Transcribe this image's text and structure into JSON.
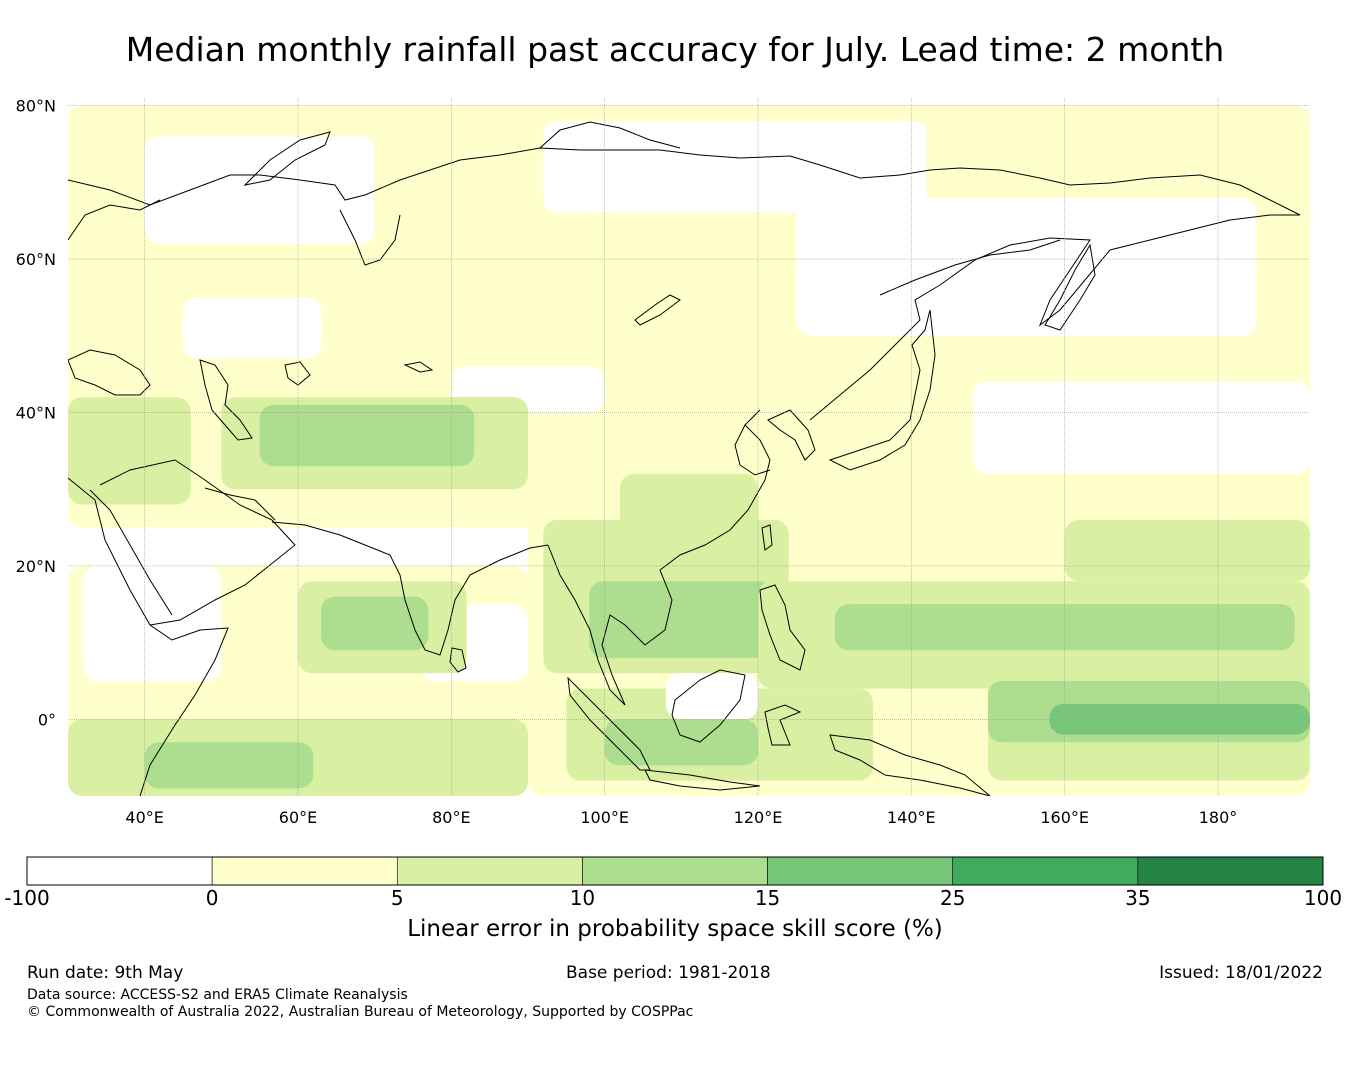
{
  "title": "Median monthly rainfall past accuracy for July. Lead time: 2 month",
  "map": {
    "lon_range": [
      30,
      192
    ],
    "lat_range": [
      -10,
      81
    ],
    "lat_ticks": [
      {
        "value": 80,
        "label": "80°N"
      },
      {
        "value": 60,
        "label": "60°N"
      },
      {
        "value": 40,
        "label": "40°N"
      },
      {
        "value": 20,
        "label": "20°N"
      },
      {
        "value": 0,
        "label": "0°"
      }
    ],
    "lon_ticks": [
      {
        "value": 40,
        "label": "40°E"
      },
      {
        "value": 60,
        "label": "60°E"
      },
      {
        "value": 80,
        "label": "80°E"
      },
      {
        "value": 100,
        "label": "100°E"
      },
      {
        "value": 120,
        "label": "120°E"
      },
      {
        "value": 140,
        "label": "140°E"
      },
      {
        "value": 160,
        "label": "160°E"
      },
      {
        "value": 180,
        "label": "180°"
      }
    ],
    "field_regions": [
      {
        "level": 1,
        "lon": 30,
        "lat": 25,
        "w": 162,
        "h": 55
      },
      {
        "level": 0,
        "lon": 40,
        "lat": 62,
        "w": 30,
        "h": 14
      },
      {
        "level": 0,
        "lon": 92,
        "lat": 66,
        "w": 50,
        "h": 12
      },
      {
        "level": 0,
        "lon": 125,
        "lat": 50,
        "w": 60,
        "h": 18
      },
      {
        "level": 0,
        "lon": 148,
        "lat": 32,
        "w": 44,
        "h": 12
      },
      {
        "level": 0,
        "lon": 80,
        "lat": 40,
        "w": 20,
        "h": 6
      },
      {
        "level": 0,
        "lon": 45,
        "lat": 47,
        "w": 18,
        "h": 8
      },
      {
        "level": 2,
        "lon": 30,
        "lat": 28,
        "w": 16,
        "h": 14
      },
      {
        "level": 2,
        "lon": 50,
        "lat": 30,
        "w": 40,
        "h": 12
      },
      {
        "level": 3,
        "lon": 55,
        "lat": 33,
        "w": 28,
        "h": 8
      },
      {
        "level": 1,
        "lon": 30,
        "lat": -10,
        "w": 60,
        "h": 30
      },
      {
        "level": 0,
        "lon": 32,
        "lat": 5,
        "w": 18,
        "h": 15
      },
      {
        "level": 0,
        "lon": 76,
        "lat": 5,
        "w": 14,
        "h": 10
      },
      {
        "level": 2,
        "lon": 60,
        "lat": 6,
        "w": 22,
        "h": 12
      },
      {
        "level": 3,
        "lon": 63,
        "lat": 9,
        "w": 14,
        "h": 7
      },
      {
        "level": 2,
        "lon": 30,
        "lat": -10,
        "w": 60,
        "h": 10
      },
      {
        "level": 3,
        "lon": 40,
        "lat": -9,
        "w": 22,
        "h": 6
      },
      {
        "level": 1,
        "lon": 90,
        "lat": -10,
        "w": 102,
        "h": 40
      },
      {
        "level": 2,
        "lon": 92,
        "lat": 6,
        "w": 32,
        "h": 20
      },
      {
        "level": 3,
        "lon": 98,
        "lat": 8,
        "w": 24,
        "h": 10
      },
      {
        "level": 2,
        "lon": 102,
        "lat": 24,
        "w": 18,
        "h": 8
      },
      {
        "level": 2,
        "lon": 95,
        "lat": -8,
        "w": 40,
        "h": 12
      },
      {
        "level": 3,
        "lon": 100,
        "lat": -6,
        "w": 20,
        "h": 6
      },
      {
        "level": 2,
        "lon": 120,
        "lat": 4,
        "w": 72,
        "h": 14
      },
      {
        "level": 3,
        "lon": 130,
        "lat": 9,
        "w": 60,
        "h": 6
      },
      {
        "level": 2,
        "lon": 150,
        "lat": -8,
        "w": 42,
        "h": 16
      },
      {
        "level": 3,
        "lon": 150,
        "lat": -3,
        "w": 42,
        "h": 8
      },
      {
        "level": 4,
        "lon": 158,
        "lat": -2,
        "w": 34,
        "h": 4
      },
      {
        "level": 2,
        "lon": 160,
        "lat": 18,
        "w": 32,
        "h": 8
      },
      {
        "level": 0,
        "lon": 108,
        "lat": 0,
        "w": 12,
        "h": 6
      }
    ]
  },
  "colorbar": {
    "colors": [
      "#ffffff",
      "#ffffcc",
      "#d9f0a3",
      "#addd8e",
      "#78c679",
      "#41ab5d",
      "#238443"
    ],
    "boundaries": [
      -100,
      0,
      5,
      10,
      15,
      25,
      35,
      100
    ],
    "labels": [
      "-100",
      "0",
      "5",
      "10",
      "15",
      "25",
      "35",
      "100"
    ],
    "title": "Linear error in probability space skill score (%)"
  },
  "footer": {
    "run_date": "Run date: 9th May",
    "base_period": "Base period: 1981-2018",
    "issued": "Issued: 18/01/2022",
    "data_source": "Data source: ACCESS-S2 and ERA5 Climate Reanalysis",
    "copyright": "© Commonwealth of Australia 2022, Australian Bureau of Meteorology, Supported by COSPPac"
  }
}
